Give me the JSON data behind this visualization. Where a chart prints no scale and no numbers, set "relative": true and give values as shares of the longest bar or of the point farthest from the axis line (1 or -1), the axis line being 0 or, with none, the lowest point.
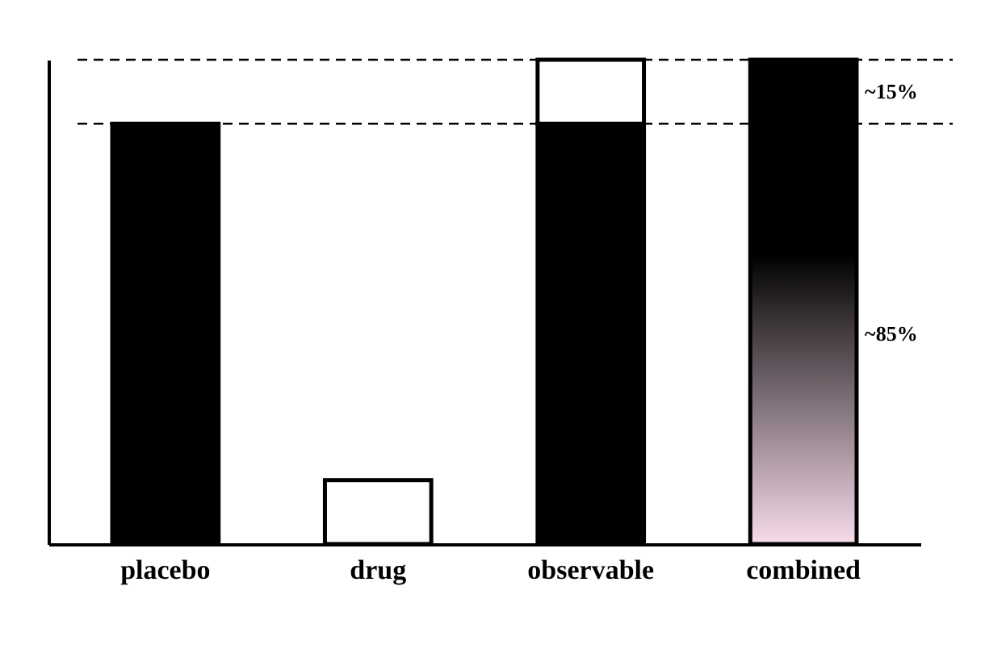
{
  "chart_data": {
    "type": "bar",
    "stacked": true,
    "relative": true,
    "categories": [
      "placebo",
      "drug",
      "observable",
      "combined"
    ],
    "series": [
      {
        "color": "#000000",
        "values": [
          0.868,
          null,
          0.868,
          null
        ]
      },
      {
        "color": "#ffffff",
        "values": [
          null,
          0.132,
          0.132,
          null
        ]
      },
      {
        "color": "#000000",
        "values": [
          null,
          null,
          null,
          1.0
        ]
      }
    ],
    "ref_lines": [
      {
        "axis": "y",
        "value": 0.868,
        "line_style": "dashed"
      },
      {
        "axis": "y",
        "value": 1.0,
        "line_style": "dashed"
      }
    ],
    "annotations": [
      "~15%",
      "~85%"
    ],
    "grid": false
  }
}
